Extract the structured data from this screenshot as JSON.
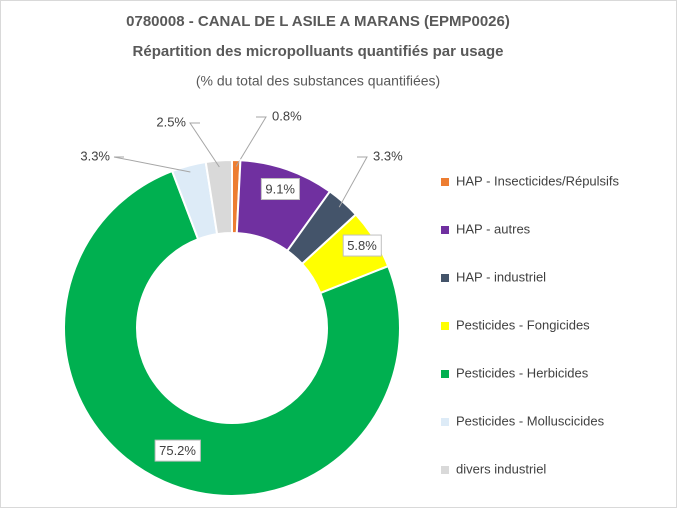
{
  "chart_data": {
    "type": "donut",
    "title": "0780008 - CANAL DE L ASILE A MARANS (EPMP0026)",
    "subtitle": "Répartition des micropolluants quantifiés par usage",
    "note": "(% du total des substances quantifiées)",
    "categories": [
      "HAP - Insecticides/Répulsifs",
      "HAP - autres",
      "HAP - industriel",
      "Pesticides - Fongicides",
      "Pesticides - Herbicides",
      "Pesticides - Molluscicides",
      "divers industriel"
    ],
    "values": [
      0.8,
      9.1,
      3.3,
      5.8,
      75.2,
      3.3,
      2.5
    ],
    "value_labels": [
      "0.8%",
      "9.1%",
      "3.3%",
      "5.8%",
      "75.2%",
      "3.3%",
      "2.5%"
    ],
    "colors": [
      "#ED7D31",
      "#7030A0",
      "#44546A",
      "#FFFF00",
      "#00B050",
      "#DDEBF7",
      "#D9D9D9"
    ]
  }
}
